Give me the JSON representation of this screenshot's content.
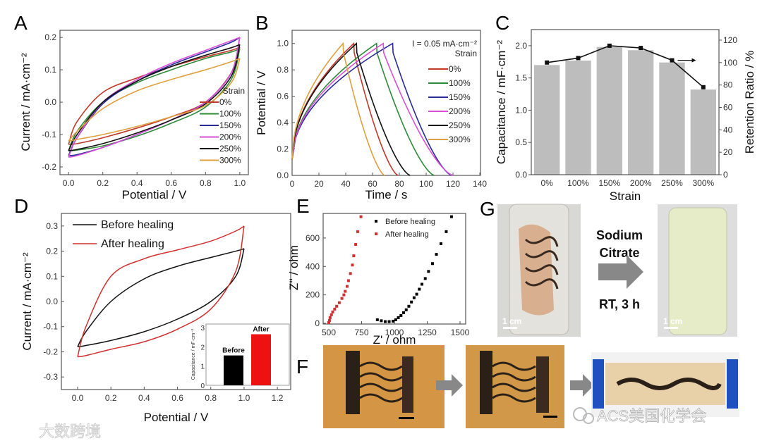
{
  "panel_labels": [
    "A",
    "B",
    "C",
    "D",
    "E",
    "F",
    "G"
  ],
  "chart_data": [
    {
      "id": "A",
      "type": "line",
      "title": "",
      "xlabel": "Potential / V",
      "ylabel": "Current / mA·cm⁻²",
      "xlim": [
        -0.05,
        1.05
      ],
      "ylim": [
        -0.224,
        0.222
      ],
      "xticks": [
        0.0,
        0.2,
        0.4,
        0.6,
        0.8,
        1.0
      ],
      "xticklabels": [
        "0.0",
        "0.2",
        "0.4",
        "0.6",
        "0.8",
        "1.0"
      ],
      "yticks": [
        -0.2,
        -0.1,
        0.0,
        0.1,
        0.2
      ],
      "yticklabels": [
        "-0.2",
        "-0.1",
        "0.0",
        "0.1",
        "0.2"
      ],
      "legend_title": "Strain",
      "legend_position": "bottom-right",
      "x": [
        0,
        0.05,
        0.2,
        0.4,
        0.6,
        0.8,
        0.95,
        1.0
      ],
      "series": [
        {
          "name": "0%",
          "color": "#c0392b",
          "upper": [
            -0.13,
            -0.06,
            0.03,
            0.075,
            0.11,
            0.14,
            0.16,
            0.17
          ],
          "lower": [
            -0.13,
            -0.128,
            -0.11,
            -0.08,
            -0.045,
            0.0,
            0.09,
            0.17
          ]
        },
        {
          "name": "100%",
          "color": "#2e8b3a",
          "upper": [
            -0.15,
            -0.09,
            0.0,
            0.06,
            0.1,
            0.135,
            0.155,
            0.165
          ],
          "lower": [
            -0.15,
            -0.148,
            -0.135,
            -0.105,
            -0.065,
            -0.015,
            0.07,
            0.165
          ]
        },
        {
          "name": "150%",
          "color": "#2a2a9a",
          "upper": [
            -0.165,
            -0.11,
            -0.005,
            0.065,
            0.115,
            0.155,
            0.185,
            0.2
          ],
          "lower": [
            -0.165,
            -0.162,
            -0.14,
            -0.1,
            -0.055,
            0.0,
            0.09,
            0.2
          ]
        },
        {
          "name": "200%",
          "color": "#d64fd6",
          "upper": [
            -0.17,
            -0.11,
            0.0,
            0.07,
            0.12,
            0.16,
            0.19,
            0.2
          ],
          "lower": [
            -0.17,
            -0.165,
            -0.14,
            -0.1,
            -0.055,
            0.0,
            0.09,
            0.2
          ]
        },
        {
          "name": "250%",
          "color": "#111111",
          "upper": [
            -0.15,
            -0.1,
            0.0,
            0.065,
            0.11,
            0.145,
            0.168,
            0.178
          ],
          "lower": [
            -0.15,
            -0.146,
            -0.128,
            -0.095,
            -0.055,
            -0.005,
            0.08,
            0.178
          ]
        },
        {
          "name": "300%",
          "color": "#e0a040",
          "upper": [
            -0.12,
            -0.09,
            -0.02,
            0.035,
            0.07,
            0.1,
            0.125,
            0.135
          ],
          "lower": [
            -0.12,
            -0.115,
            -0.1,
            -0.075,
            -0.045,
            -0.01,
            0.06,
            0.135
          ]
        }
      ]
    },
    {
      "id": "B",
      "type": "line",
      "title": "",
      "xlabel": "Time / s",
      "ylabel": "Potential / V",
      "xlim": [
        0,
        140.5
      ],
      "ylim": [
        0,
        1.1
      ],
      "xticks": [
        0,
        20,
        40,
        60,
        80,
        100,
        120,
        140
      ],
      "xticklabels": [
        "0",
        "20",
        "40",
        "60",
        "80",
        "100",
        "120",
        "140"
      ],
      "yticks": [
        0,
        0.2,
        0.4,
        0.6,
        0.8,
        1.0
      ],
      "yticklabels": [
        "0.0",
        "0.2",
        "0.4",
        "0.6",
        "0.8",
        "1.0"
      ],
      "annotation": "I = 0.05 mA·cm⁻²",
      "legend_title": "Strain",
      "legend_position": "top-right",
      "max_potential_V": 1.0,
      "series": [
        {
          "name": "0%",
          "color": "#c0392b",
          "charge_end_s": 46,
          "discharge_end_s": 79
        },
        {
          "name": "100%",
          "color": "#2e8b3a",
          "charge_end_s": 63,
          "discharge_end_s": 106
        },
        {
          "name": "150%",
          "color": "#2a2a9a",
          "charge_end_s": 75,
          "discharge_end_s": 119
        },
        {
          "name": "200%",
          "color": "#d64fd6",
          "charge_end_s": 68,
          "discharge_end_s": 120
        },
        {
          "name": "250%",
          "color": "#111111",
          "charge_end_s": 48,
          "discharge_end_s": 88
        },
        {
          "name": "300%",
          "color": "#e0a040",
          "charge_end_s": 38,
          "discharge_end_s": 69
        }
      ]
    },
    {
      "id": "C",
      "type": "bar",
      "title": "",
      "xlabel": "Strain",
      "ylabel": "Capacitance / mF·cm⁻²",
      "y2label": "Retention Ratio / %",
      "categories": [
        "0%",
        "100%",
        "150%",
        "200%",
        "250%",
        "300%"
      ],
      "ylim": [
        0,
        2.25
      ],
      "y2lim": [
        0,
        129.4
      ],
      "yticks": [
        0,
        0.5,
        1.0,
        1.5,
        2.0
      ],
      "yticklabels": [
        "0.0",
        "0.5",
        "1.0",
        "1.5",
        "2.0"
      ],
      "y2ticks": [
        0,
        20,
        40,
        60,
        80,
        100,
        120
      ],
      "y2ticklabels": [
        "0",
        "20",
        "40",
        "60",
        "80",
        "100",
        "120"
      ],
      "bar_color": "#bdbdbd",
      "values": [
        1.7,
        1.77,
        1.98,
        1.93,
        1.74,
        1.32
      ],
      "retention": [
        100,
        104,
        115,
        113,
        102,
        78
      ]
    },
    {
      "id": "D",
      "type": "line",
      "title": "",
      "xlabel": "Potential / V",
      "ylabel": "Current / mA·cm⁻²",
      "xlim": [
        -0.0975,
        1.28
      ],
      "ylim": [
        -0.35,
        0.35
      ],
      "xticks": [
        0,
        0.2,
        0.4,
        0.6,
        0.8,
        1.0,
        1.2
      ],
      "xticklabels": [
        "0.0",
        "0.2",
        "0.4",
        "0.6",
        "0.8",
        "1.0",
        "1.2"
      ],
      "yticks": [
        -0.3,
        -0.2,
        -0.1,
        0,
        0.1,
        0.2,
        0.3
      ],
      "yticklabels": [
        "-0.3",
        "-0.2",
        "-0.1",
        "0.0",
        "0.1",
        "0.2",
        "0.3"
      ],
      "legend_position": "top-left",
      "x": [
        0,
        0.05,
        0.2,
        0.4,
        0.6,
        0.8,
        0.95,
        1.0
      ],
      "series": [
        {
          "name": "Before healing",
          "color": "#111111",
          "upper": [
            -0.18,
            -0.12,
            0.0,
            0.09,
            0.14,
            0.175,
            0.2,
            0.21
          ],
          "lower": [
            -0.18,
            -0.175,
            -0.155,
            -0.12,
            -0.07,
            0.0,
            0.1,
            0.21
          ]
        },
        {
          "name": "After healing",
          "color": "#d03030",
          "upper": [
            -0.22,
            -0.1,
            0.1,
            0.17,
            0.205,
            0.24,
            0.28,
            0.3
          ],
          "lower": [
            -0.22,
            -0.215,
            -0.19,
            -0.16,
            -0.11,
            -0.03,
            0.12,
            0.3
          ]
        }
      ]
    },
    {
      "id": "D-inset",
      "type": "bar",
      "title": "",
      "ylabel": "Capacitance / mF·cm⁻²",
      "ylim": [
        0,
        3.18
      ],
      "yticks": [
        0,
        1,
        2,
        3
      ],
      "yticklabels": [
        "0",
        "1",
        "2",
        "3"
      ],
      "categories": [
        "Before",
        "After"
      ],
      "values": [
        1.55,
        2.65
      ],
      "colors": [
        "#000000",
        "#ee1111"
      ]
    },
    {
      "id": "E",
      "type": "scatter",
      "title": "",
      "xlabel": "Z' / ohm",
      "ylabel": "Z'' / ohm",
      "xlim": [
        457,
        1543
      ],
      "ylim": [
        -5,
        773
      ],
      "xticks": [
        500,
        750,
        1000,
        1250,
        1500
      ],
      "xticklabels": [
        "500",
        "750",
        "1000",
        "1250",
        "1500"
      ],
      "yticks": [
        0,
        200,
        400,
        600
      ],
      "yticklabels": [
        "0",
        "200",
        "400",
        "600"
      ],
      "legend_position": "top",
      "series": [
        {
          "name": "Before healing",
          "color": "#000000",
          "points": [
            [
              870,
              25
            ],
            [
              900,
              18
            ],
            [
              930,
              12
            ],
            [
              960,
              12
            ],
            [
              990,
              15
            ],
            [
              1010,
              25
            ],
            [
              1030,
              40
            ],
            [
              1050,
              55
            ],
            [
              1070,
              75
            ],
            [
              1090,
              95
            ],
            [
              1110,
              120
            ],
            [
              1130,
              150
            ],
            [
              1150,
              180
            ],
            [
              1170,
              205
            ],
            [
              1190,
              240
            ],
            [
              1210,
              275
            ],
            [
              1235,
              315
            ],
            [
              1260,
              365
            ],
            [
              1290,
              420
            ],
            [
              1320,
              485
            ],
            [
              1355,
              560
            ],
            [
              1395,
              645
            ],
            [
              1435,
              750
            ]
          ]
        },
        {
          "name": "After healing",
          "color": "#d03030",
          "points": [
            [
              500,
              5
            ],
            [
              505,
              20
            ],
            [
              510,
              40
            ],
            [
              520,
              60
            ],
            [
              530,
              80
            ],
            [
              545,
              100
            ],
            [
              560,
              120
            ],
            [
              580,
              145
            ],
            [
              600,
              175
            ],
            [
              615,
              200
            ],
            [
              625,
              225
            ],
            [
              640,
              260
            ],
            [
              650,
              300
            ],
            [
              665,
              350
            ],
            [
              680,
              410
            ],
            [
              690,
              475
            ],
            [
              705,
              555
            ],
            [
              720,
              645
            ],
            [
              745,
              750
            ]
          ]
        }
      ]
    }
  ],
  "photos": {
    "G": {
      "arrow_text": [
        "Sodium",
        "Citrate",
        "RT, 3 h"
      ],
      "scale_bar_left": "1 cm",
      "scale_bar_right": "1 cm"
    }
  },
  "watermarks": {
    "left": "大数跨境",
    "right": "ACS美国化学会"
  }
}
